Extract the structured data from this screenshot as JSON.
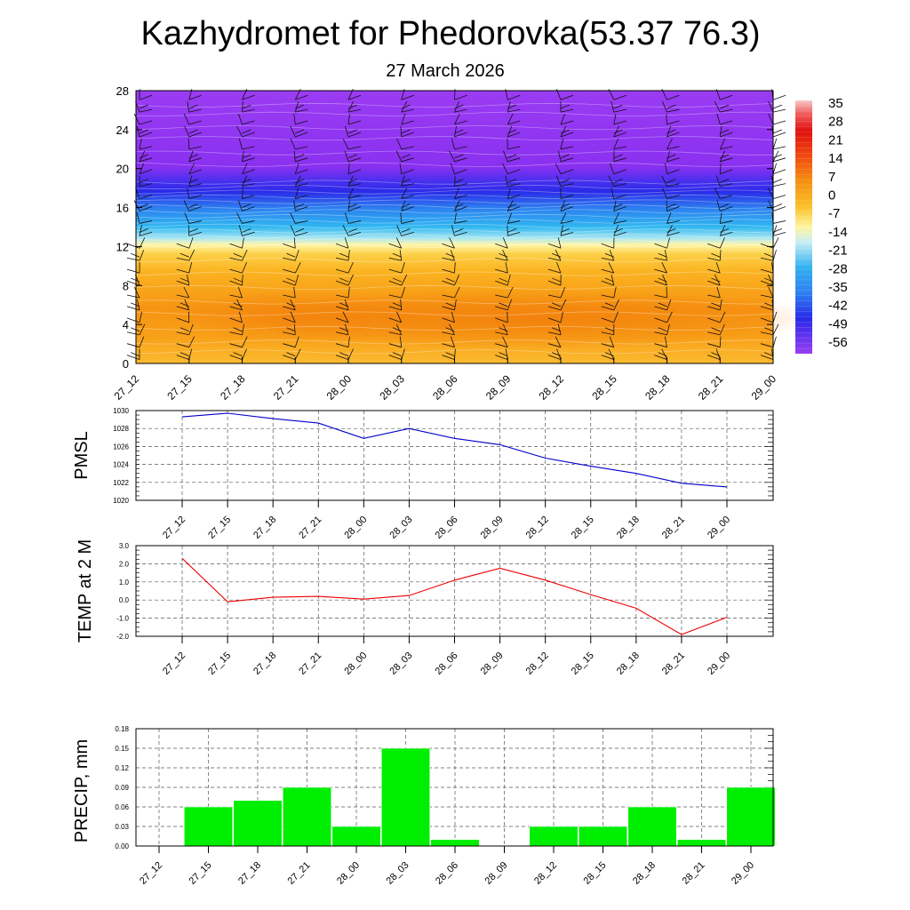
{
  "header": {
    "title": "Kazhydromet for Phedorovka(53.37 76.3)",
    "subtitle": "27 March 2026"
  },
  "chart_data": [
    {
      "type": "heatmap",
      "name": "vertical-cross-section",
      "title": "",
      "x": [
        "27_12",
        "27_15",
        "27_18",
        "27_21",
        "28_00",
        "28_03",
        "28_06",
        "28_09",
        "28_12",
        "28_15",
        "28_18",
        "28_21",
        "29_00"
      ],
      "y_ticks": [
        "0",
        "4",
        "8",
        "12",
        "16",
        "20",
        "24",
        "28"
      ],
      "ylim": [
        0,
        28
      ],
      "colorbar": {
        "labels": [
          "35",
          "28",
          "21",
          "14",
          "7",
          "0",
          "-7",
          "-14",
          "-21",
          "-28",
          "-35",
          "-42",
          "-49",
          "-56"
        ],
        "range": [
          -63,
          42
        ]
      },
      "colors": {
        "upper": "#9d36f0",
        "jet": "#3232ee",
        "cyan": "#22aaf0",
        "pale": "#fff5b0",
        "low": "#fbb520",
        "core": "#f58b10"
      }
    },
    {
      "type": "line",
      "name": "pmsl",
      "ylabel": "PMSL",
      "categories": [
        "27_12",
        "27_15",
        "27_18",
        "27_21",
        "28_00",
        "28_03",
        "28_06",
        "28_09",
        "28_12",
        "28_15",
        "28_18",
        "28_21",
        "29_00"
      ],
      "values": [
        1029.3,
        1029.7,
        1029.1,
        1028.6,
        1026.9,
        1028.0,
        1026.9,
        1026.2,
        1024.7,
        1023.8,
        1023.0,
        1021.9,
        1021.5
      ],
      "ylim": [
        1020,
        1030
      ],
      "y_ticks": [
        "1020",
        "1022",
        "1024",
        "1026",
        "1028",
        "1030"
      ],
      "color": "#0000cc"
    },
    {
      "type": "line",
      "name": "temp-2m",
      "ylabel": "TEMP at 2 M",
      "categories": [
        "27_12",
        "27_15",
        "27_18",
        "27_21",
        "28_00",
        "28_03",
        "28_06",
        "28_09",
        "28_12",
        "28_15",
        "28_18",
        "28_21",
        "29_00"
      ],
      "values": [
        2.3,
        -0.1,
        0.15,
        0.2,
        0.05,
        0.25,
        1.1,
        1.75,
        1.1,
        0.3,
        -0.45,
        -1.9,
        -0.95
      ],
      "ylim": [
        -2,
        3
      ],
      "y_ticks": [
        "-2.0",
        "-1.0",
        "0.0",
        "1.0",
        "2.0",
        "3.0"
      ],
      "color": "#ee0000"
    },
    {
      "type": "bar",
      "name": "precip",
      "ylabel": "PRECIP, mm",
      "categories": [
        "27_12",
        "27_15",
        "27_18",
        "27_21",
        "28_00",
        "28_03",
        "28_06",
        "28_09",
        "28_12",
        "28_15",
        "28_18",
        "28_21",
        "29_00"
      ],
      "values": [
        0,
        0.06,
        0.07,
        0.09,
        0.03,
        0.15,
        0.01,
        0,
        0.03,
        0.03,
        0.06,
        0.01,
        0.09
      ],
      "ylim": [
        0,
        0.18
      ],
      "y_ticks": [
        "0.00",
        "0.03",
        "0.06",
        "0.09",
        "0.12",
        "0.15",
        "0.18"
      ],
      "color": "#00ee00"
    }
  ]
}
